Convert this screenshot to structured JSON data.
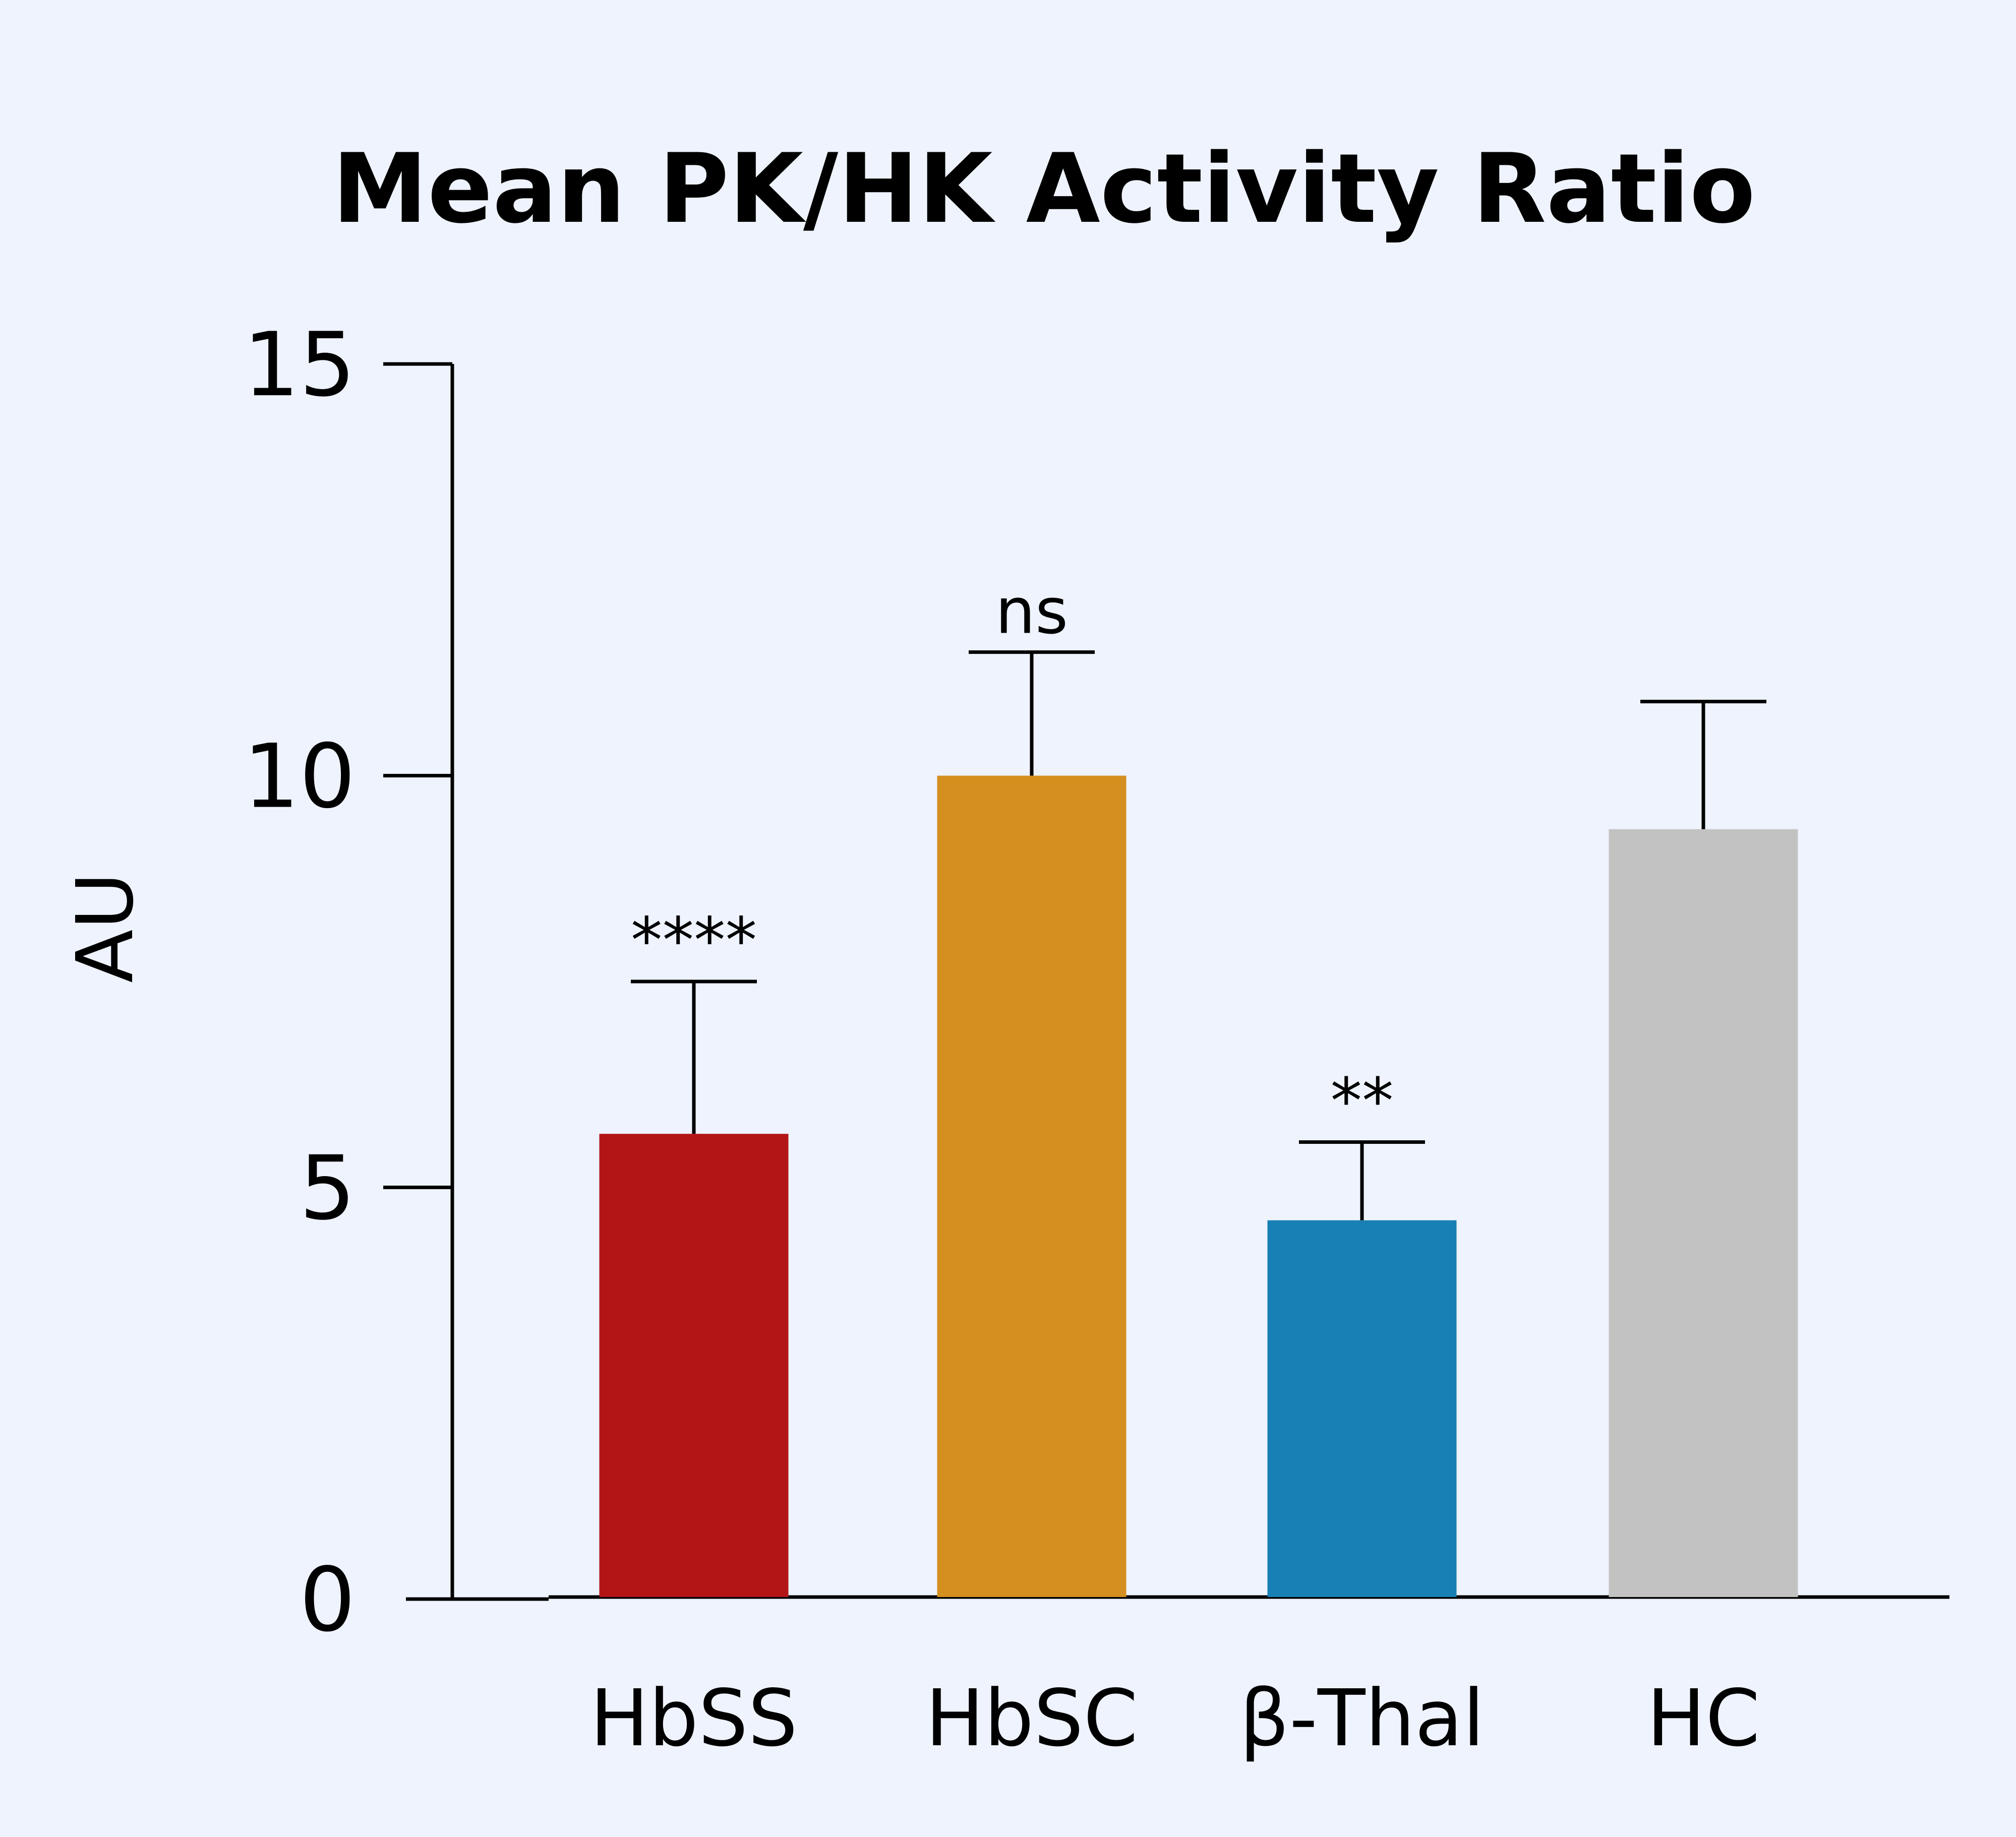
{
  "chart_data": {
    "type": "bar",
    "title": "Mean PK/HK Activity Ratio",
    "xlabel": "",
    "ylabel": "AU",
    "ylim": [
      0,
      15
    ],
    "yticks": [
      0,
      5,
      10,
      15
    ],
    "grid": false,
    "legend": "none",
    "categories": [
      "HbSS",
      "HbSC",
      "β-Thal",
      "HC"
    ],
    "values": [
      5.65,
      10.0,
      4.6,
      9.35
    ],
    "error_upper": [
      7.5,
      11.5,
      5.55,
      10.9
    ],
    "significance": [
      "****",
      "ns",
      "**",
      ""
    ],
    "colors": [
      "#b31517",
      "#d48f1e",
      "#1880b4",
      "#c2c2c2"
    ]
  }
}
